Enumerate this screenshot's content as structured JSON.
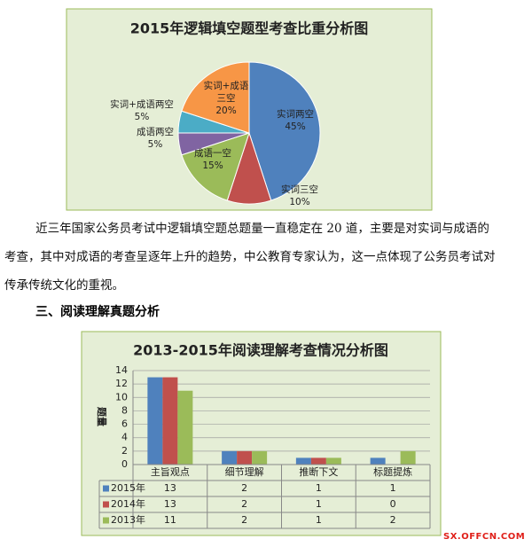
{
  "chart_data": [
    {
      "type": "pie",
      "title": "2015年逻辑填空题型考查比重分析图",
      "categories": [
        "实词两空",
        "实词三空",
        "成语一空",
        "成语两空",
        "实词+成语两空",
        "实词+成语三空"
      ],
      "values": [
        45,
        10,
        15,
        5,
        5,
        20
      ],
      "value_labels": [
        "45%",
        "10%",
        "15%",
        "5%",
        "5%",
        "20%"
      ],
      "colors": [
        "#4f81bd",
        "#c0504d",
        "#9bbb59",
        "#8064a2",
        "#4bacc6",
        "#f79646"
      ]
    },
    {
      "type": "bar",
      "title": "2013-2015年阅读理解考查情况分析图",
      "y_label": "题量",
      "categories": [
        "主旨观点",
        "细节理解",
        "推断下文",
        "标题提炼"
      ],
      "series": [
        {
          "name": "2015年",
          "color": "#4f81bd",
          "values": [
            13,
            2,
            1,
            1
          ]
        },
        {
          "name": "2014年",
          "color": "#c0504d",
          "values": [
            13,
            2,
            1,
            0
          ]
        },
        {
          "name": "2013年",
          "color": "#9bbb59",
          "values": [
            11,
            2,
            1,
            2
          ]
        }
      ],
      "ylim": [
        0,
        14
      ],
      "yticks": [
        0,
        2,
        4,
        6,
        8,
        10,
        12,
        14
      ],
      "grid": true,
      "data_table": true
    }
  ],
  "paragraph": "近三年国家公务员考试中逻辑填空题总题量一直稳定在 20 道，主要是对实词与成语的考查，其中对成语的考查呈逐年上升的趋势，中公教育专家认为，这一点体现了公务员考试对传承传统文化的重视。",
  "heading": "三、阅读理解真题分析",
  "watermark": "SX.OFFCN.COM"
}
